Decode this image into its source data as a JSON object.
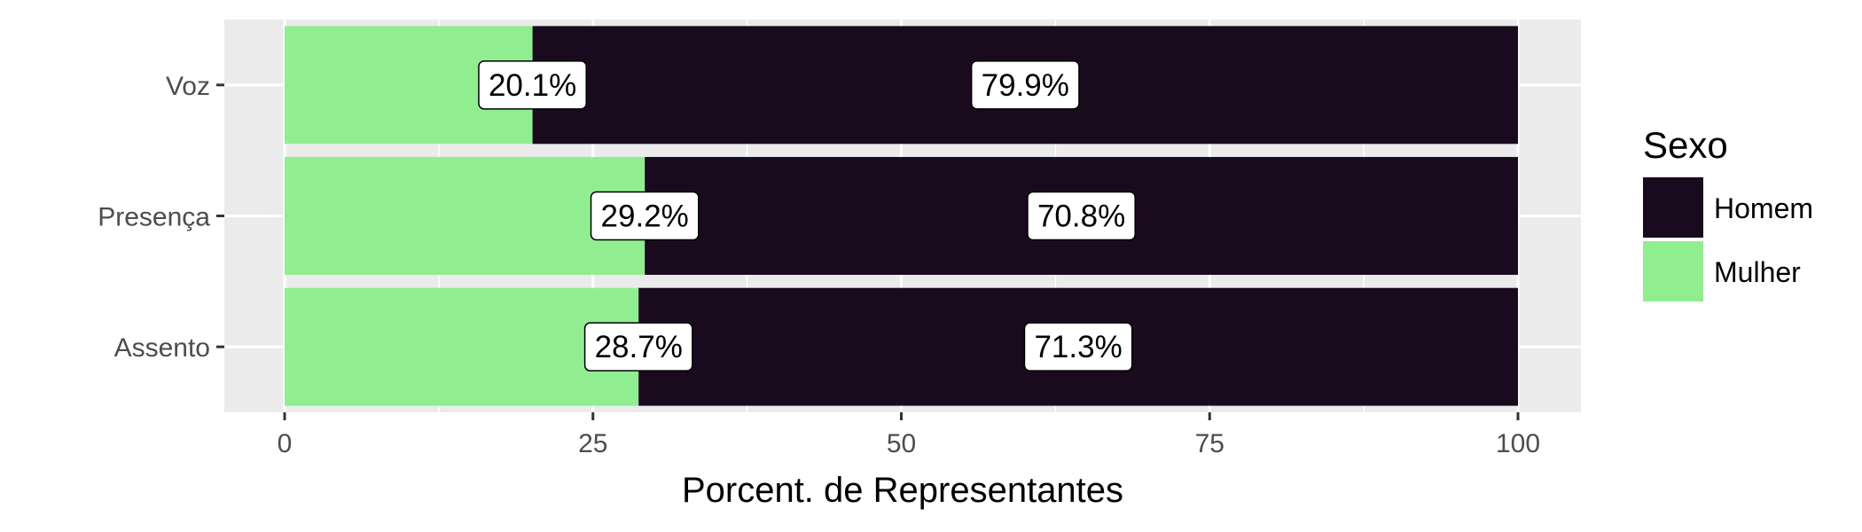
{
  "chart_data": {
    "type": "bar",
    "orientation": "horizontal",
    "stacked": true,
    "categories": [
      "Voz",
      "Presença",
      "Assento"
    ],
    "series": [
      {
        "name": "Mulher",
        "values": [
          20.1,
          29.2,
          28.7
        ],
        "labels": [
          "20.1%",
          "29.2%",
          "28.7%"
        ],
        "color": "#90EE90"
      },
      {
        "name": "Homem",
        "values": [
          79.9,
          70.8,
          71.3
        ],
        "labels": [
          "79.9%",
          "70.8%",
          "71.3%"
        ],
        "color": "#1A0A1E"
      }
    ],
    "xlabel": "Porcent. de Representantes",
    "ylabel": "",
    "xlim": [
      0,
      100
    ],
    "xticks": [
      0,
      25,
      50,
      75,
      100
    ],
    "xtick_labels": [
      "0",
      "25",
      "50",
      "75",
      "100"
    ],
    "grid": true,
    "legend": {
      "title": "Sexo",
      "placement": "right",
      "entries": [
        {
          "label": "Homem",
          "color": "#1A0A1E"
        },
        {
          "label": "Mulher",
          "color": "#90EE90"
        }
      ]
    },
    "panel_background": "#EBEBEB",
    "grid_color": "#FFFFFF"
  }
}
